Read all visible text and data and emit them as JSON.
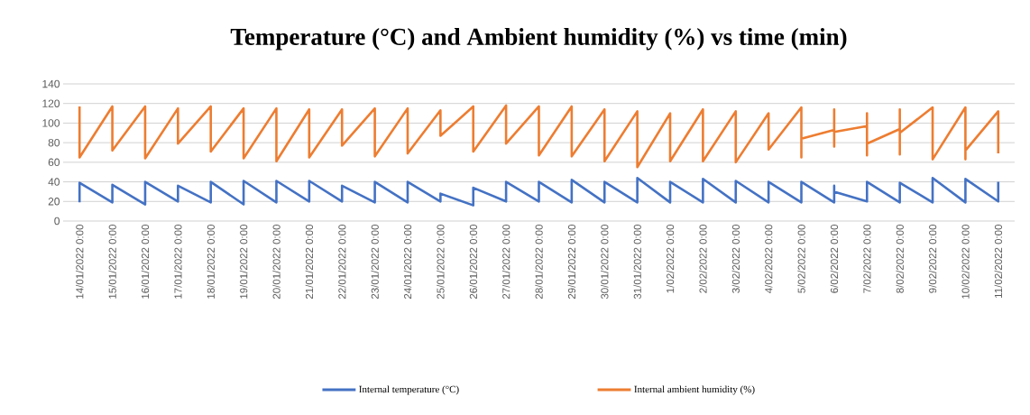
{
  "chart_data": {
    "type": "line",
    "title": "Temperature (°C) and Ambient humidity (%) vs  time (min)",
    "xlim": [
      "2022-01-13T12:00",
      "2022-02-11T12:00"
    ],
    "xticks": [
      {
        "value": "2022-01-14",
        "label": "14/01/2022 0:00"
      },
      {
        "value": "2022-01-15",
        "label": "15/01/2022 0:00"
      },
      {
        "value": "2022-01-16",
        "label": "16/01/2022 0:00"
      },
      {
        "value": "2022-01-17",
        "label": "17/01/2022 0:00"
      },
      {
        "value": "2022-01-18",
        "label": "18/01/2022 0:00"
      },
      {
        "value": "2022-01-19",
        "label": "19/01/2022 0:00"
      },
      {
        "value": "2022-01-20",
        "label": "20/01/2022 0:00"
      },
      {
        "value": "2022-01-21",
        "label": "21/01/2022 0:00"
      },
      {
        "value": "2022-01-22",
        "label": "22/01/2022 0:00"
      },
      {
        "value": "2022-01-23",
        "label": "23/01/2022 0:00"
      },
      {
        "value": "2022-01-24",
        "label": "24/01/2022 0:00"
      },
      {
        "value": "2022-01-25",
        "label": "25/01/2022 0:00"
      },
      {
        "value": "2022-01-26",
        "label": "26/01/2022 0:00"
      },
      {
        "value": "2022-01-27",
        "label": "27/01/2022 0:00"
      },
      {
        "value": "2022-01-28",
        "label": "28/01/2022 0:00"
      },
      {
        "value": "2022-01-29",
        "label": "29/01/2022 0:00"
      },
      {
        "value": "2022-01-30",
        "label": "30/01/2022 0:00"
      },
      {
        "value": "2022-01-31",
        "label": "31/01/2022 0:00"
      },
      {
        "value": "2022-02-01",
        "label": "1/02/2022 0:00"
      },
      {
        "value": "2022-02-02",
        "label": "2/02/2022 0:00"
      },
      {
        "value": "2022-02-03",
        "label": "3/02/2022 0:00"
      },
      {
        "value": "2022-02-04",
        "label": "4/02/2022 0:00"
      },
      {
        "value": "2022-02-05",
        "label": "5/02/2022 0:00"
      },
      {
        "value": "2022-02-06",
        "label": "6/02/2022 0:00"
      },
      {
        "value": "2022-02-07",
        "label": "7/02/2022 0:00"
      },
      {
        "value": "2022-02-08",
        "label": "8/02/2022 0:00"
      },
      {
        "value": "2022-02-09",
        "label": "9/02/2022 0:00"
      },
      {
        "value": "2022-02-10",
        "label": "10/02/2022 0:00"
      },
      {
        "value": "2022-02-11",
        "label": "11/02/2022 0:00"
      }
    ],
    "ylim": [
      0,
      140
    ],
    "yticks": [
      0,
      20,
      40,
      60,
      80,
      100,
      120,
      140
    ],
    "grid": "y",
    "legend": "bottom",
    "marker": "none",
    "line_style": "solid",
    "series": [
      {
        "name": "Internal temperature (°C)",
        "color": "#4472c4",
        "x": [
          "2022-01-14",
          "2022-01-14",
          "2022-01-15",
          "2022-01-15",
          "2022-01-16",
          "2022-01-16",
          "2022-01-17",
          "2022-01-17",
          "2022-01-18",
          "2022-01-18",
          "2022-01-19",
          "2022-01-19",
          "2022-01-20",
          "2022-01-20",
          "2022-01-21",
          "2022-01-21",
          "2022-01-22",
          "2022-01-22",
          "2022-01-23",
          "2022-01-23",
          "2022-01-24",
          "2022-01-24",
          "2022-01-25",
          "2022-01-25",
          "2022-01-26",
          "2022-01-26",
          "2022-01-27",
          "2022-01-27",
          "2022-01-28",
          "2022-01-28",
          "2022-01-29",
          "2022-01-29",
          "2022-01-30",
          "2022-01-30",
          "2022-01-31",
          "2022-01-31",
          "2022-02-01",
          "2022-02-01",
          "2022-02-02",
          "2022-02-02",
          "2022-02-03",
          "2022-02-03",
          "2022-02-04",
          "2022-02-04",
          "2022-02-05",
          "2022-02-05",
          "2022-02-06",
          "2022-02-06",
          "2022-02-06",
          "2022-02-07",
          "2022-02-07",
          "2022-02-08",
          "2022-02-08",
          "2022-02-09",
          "2022-02-09",
          "2022-02-10",
          "2022-02-10",
          "2022-02-11",
          "2022-02-11"
        ],
        "values": [
          19,
          39,
          19,
          37,
          17,
          40,
          20,
          36,
          19,
          40,
          17,
          41,
          19,
          41,
          20,
          41,
          20,
          36,
          19,
          40,
          19,
          40,
          20,
          28,
          16,
          34,
          20,
          40,
          20,
          40,
          19,
          42,
          19,
          40,
          19,
          44,
          19,
          40,
          19,
          43,
          19,
          41,
          19,
          40,
          19,
          40,
          19,
          36,
          30,
          20,
          40,
          19,
          39,
          19,
          44,
          19,
          43,
          20,
          40
        ]
      },
      {
        "name": "Internal ambient humidity (%)",
        "color": "#ed7d31",
        "x": [
          "2022-01-14",
          "2022-01-14",
          "2022-01-15",
          "2022-01-15",
          "2022-01-16",
          "2022-01-16",
          "2022-01-17",
          "2022-01-17",
          "2022-01-18",
          "2022-01-18",
          "2022-01-19",
          "2022-01-19",
          "2022-01-20",
          "2022-01-20",
          "2022-01-21",
          "2022-01-21",
          "2022-01-22",
          "2022-01-22",
          "2022-01-23",
          "2022-01-23",
          "2022-01-24",
          "2022-01-24",
          "2022-01-25",
          "2022-01-25",
          "2022-01-26",
          "2022-01-26",
          "2022-01-27",
          "2022-01-27",
          "2022-01-28",
          "2022-01-28",
          "2022-01-29",
          "2022-01-29",
          "2022-01-30",
          "2022-01-30",
          "2022-01-31",
          "2022-01-31",
          "2022-02-01",
          "2022-02-01",
          "2022-02-02",
          "2022-02-02",
          "2022-02-03",
          "2022-02-03",
          "2022-02-04",
          "2022-02-04",
          "2022-02-05",
          "2022-02-05",
          "2022-02-05",
          "2022-02-06",
          "2022-02-06",
          "2022-02-06",
          "2022-02-06",
          "2022-02-07",
          "2022-02-07",
          "2022-02-07",
          "2022-02-07",
          "2022-02-08",
          "2022-02-08",
          "2022-02-08",
          "2022-02-08",
          "2022-02-09",
          "2022-02-09",
          "2022-02-10",
          "2022-02-10",
          "2022-02-10",
          "2022-02-11",
          "2022-02-11"
        ],
        "values": [
          117,
          65,
          117,
          72,
          117,
          64,
          115,
          79,
          117,
          71,
          115,
          64,
          115,
          61,
          114,
          65,
          114,
          77,
          115,
          66,
          115,
          69,
          113,
          87,
          117,
          71,
          118,
          79,
          117,
          67,
          117,
          66,
          114,
          61,
          112,
          55,
          110,
          61,
          114,
          61,
          112,
          60,
          110,
          73,
          116,
          65,
          84,
          93,
          114,
          76,
          91,
          97,
          110,
          67,
          79,
          94,
          114,
          68,
          90,
          116,
          63,
          116,
          63,
          72,
          112,
          69
        ]
      }
    ]
  }
}
